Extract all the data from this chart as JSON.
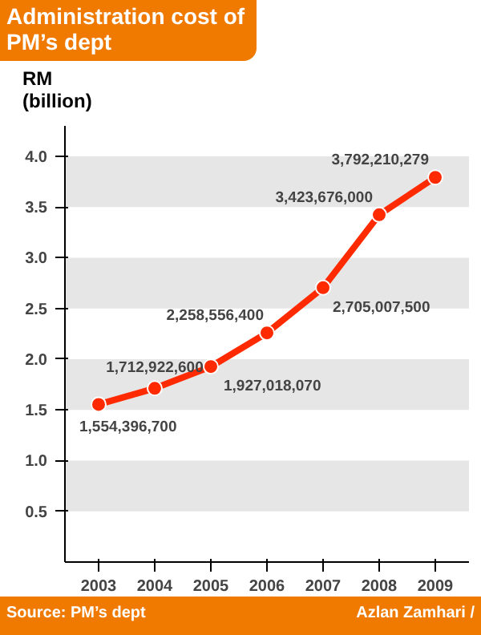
{
  "chart_data": {
    "type": "line",
    "title": "Administration cost of PM’s dept",
    "ylabel": "RM (billion)",
    "categories": [
      "2003",
      "2004",
      "2005",
      "2006",
      "2007",
      "2008",
      "2009"
    ],
    "series": [
      {
        "color": "#ff2a00",
        "values": [
          1.554,
          1.713,
          1.927,
          2.259,
          2.705,
          3.424,
          3.792
        ]
      }
    ],
    "ylim": [
      0,
      4.3
    ],
    "yticks": [
      0.5,
      {
        "value": 1,
        "label": "1.0"
      },
      1.5,
      {
        "value": 2,
        "label": "2.0"
      },
      2.5,
      {
        "value": 3,
        "label": "3.0"
      },
      3.5,
      {
        "value": 4,
        "label": "4.0"
      }
    ],
    "bands": [
      {
        "axis": "y",
        "from": 0.5,
        "to": 1,
        "color": "#e6e6e6"
      },
      {
        "axis": "y",
        "from": 1.5,
        "to": 2,
        "color": "#e6e6e6"
      },
      {
        "axis": "y",
        "from": 2.5,
        "to": 3,
        "color": "#e6e6e6"
      },
      {
        "axis": "y",
        "from": 3.5,
        "to": 4,
        "color": "#e6e6e6"
      }
    ],
    "marker": "circle",
    "line_style": "solid",
    "annotations": [
      {
        "text": "1,554,396,700",
        "x": "2003",
        "y": 1.554
      },
      {
        "text": "1,712,922,600",
        "x": "2004",
        "y": 1.713
      },
      {
        "text": "1,927,018,070",
        "x": "2005",
        "y": 1.927
      },
      {
        "text": "2,258,556,400",
        "x": "2006",
        "y": 2.259
      },
      {
        "text": "2,705,007,500",
        "x": "2007",
        "y": 2.705
      },
      {
        "text": "3,423,676,000",
        "x": "2008",
        "y": 3.424
      },
      {
        "text": "3,792,210,279",
        "x": "2009",
        "y": 3.792
      },
      "Source: PM’s dept",
      "Azlan Zamhari /"
    ]
  }
}
